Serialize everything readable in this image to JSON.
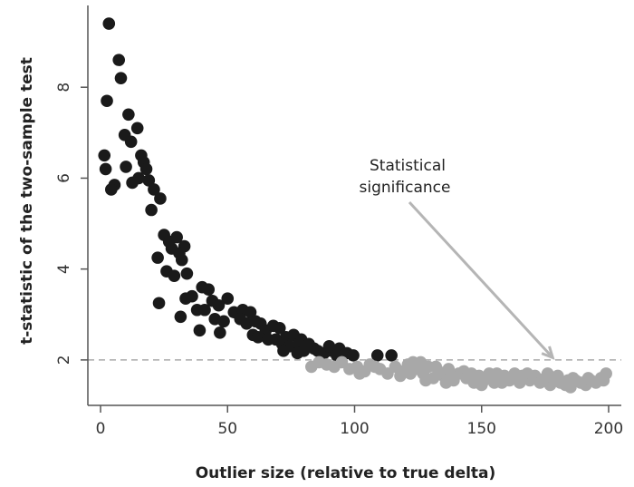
{
  "chart_data": {
    "type": "scatter",
    "title": "",
    "xlabel": "Outlier size (relative to true delta)",
    "ylabel": "t-statistic of the two-sample test",
    "xlim": [
      -5,
      205
    ],
    "ylim": [
      1.0,
      9.8
    ],
    "x_ticks": [
      0,
      50,
      100,
      150,
      200
    ],
    "y_ticks": [
      2,
      4,
      6,
      8
    ],
    "grid": false,
    "reference_line": {
      "y": 2,
      "style": "dashed",
      "color": "#aaaaaa"
    },
    "annotation": {
      "lines": [
        "Statistical",
        "significance"
      ],
      "arrow_to": {
        "x": 178,
        "y": 2.05
      }
    },
    "colors": {
      "significant": "#1a1a1a",
      "not_significant": "#a8a8a8",
      "axis": "#555555"
    },
    "series": [
      {
        "key": "significant",
        "points": [
          [
            3.3,
            9.4
          ],
          [
            2.5,
            7.7
          ],
          [
            7.2,
            8.6
          ],
          [
            8,
            8.2
          ],
          [
            11,
            7.4
          ],
          [
            14.5,
            7.1
          ],
          [
            9.5,
            6.95
          ],
          [
            12,
            6.8
          ],
          [
            16,
            6.5
          ],
          [
            17,
            6.35
          ],
          [
            1.5,
            6.5
          ],
          [
            2,
            6.2
          ],
          [
            10,
            6.25
          ],
          [
            18,
            6.2
          ],
          [
            15,
            6.0
          ],
          [
            19,
            5.95
          ],
          [
            12.5,
            5.9
          ],
          [
            5.5,
            5.85
          ],
          [
            4.2,
            5.75
          ],
          [
            21,
            5.75
          ],
          [
            23.5,
            5.55
          ],
          [
            20,
            5.3
          ],
          [
            25,
            4.75
          ],
          [
            27,
            4.6
          ],
          [
            30,
            4.7
          ],
          [
            33,
            4.5
          ],
          [
            28,
            4.45
          ],
          [
            31,
            4.35
          ],
          [
            22.5,
            4.25
          ],
          [
            32,
            4.2
          ],
          [
            26,
            3.95
          ],
          [
            29,
            3.85
          ],
          [
            34,
            3.9
          ],
          [
            40,
            3.6
          ],
          [
            42.5,
            3.55
          ],
          [
            36,
            3.4
          ],
          [
            33.5,
            3.35
          ],
          [
            23,
            3.25
          ],
          [
            44,
            3.3
          ],
          [
            50,
            3.35
          ],
          [
            46.5,
            3.2
          ],
          [
            38,
            3.1
          ],
          [
            41,
            3.1
          ],
          [
            52.5,
            3.05
          ],
          [
            56,
            3.1
          ],
          [
            59,
            3.05
          ],
          [
            55,
            2.9
          ],
          [
            31.5,
            2.95
          ],
          [
            45,
            2.9
          ],
          [
            48.5,
            2.85
          ],
          [
            57.5,
            2.8
          ],
          [
            61,
            2.85
          ],
          [
            63,
            2.8
          ],
          [
            65,
            2.65
          ],
          [
            68,
            2.75
          ],
          [
            70.5,
            2.7
          ],
          [
            39,
            2.65
          ],
          [
            47,
            2.6
          ],
          [
            60,
            2.55
          ],
          [
            62,
            2.5
          ],
          [
            66,
            2.45
          ],
          [
            73,
            2.5
          ],
          [
            76,
            2.55
          ],
          [
            69,
            2.45
          ],
          [
            79,
            2.45
          ],
          [
            71.5,
            2.35
          ],
          [
            74.5,
            2.3
          ],
          [
            78,
            2.35
          ],
          [
            82,
            2.35
          ],
          [
            84,
            2.25
          ],
          [
            85.5,
            2.2
          ],
          [
            88,
            2.15
          ],
          [
            91,
            2.2
          ],
          [
            94,
            2.25
          ],
          [
            90,
            2.3
          ],
          [
            72,
            2.2
          ],
          [
            77.5,
            2.15
          ],
          [
            80,
            2.2
          ],
          [
            93,
            2.1
          ],
          [
            97,
            2.15
          ],
          [
            99.5,
            2.1
          ],
          [
            109,
            2.1
          ],
          [
            114.5,
            2.1
          ]
        ]
      },
      {
        "key": "not_significant",
        "points": [
          [
            83,
            1.85
          ],
          [
            86,
            1.95
          ],
          [
            89,
            1.9
          ],
          [
            92,
            1.85
          ],
          [
            95,
            1.95
          ],
          [
            98,
            1.8
          ],
          [
            101,
            1.85
          ],
          [
            104,
            1.75
          ],
          [
            106,
            1.9
          ],
          [
            110,
            1.8
          ],
          [
            113,
            1.7
          ],
          [
            116,
            1.85
          ],
          [
            119,
            1.75
          ],
          [
            121,
            1.9
          ],
          [
            123,
            1.95
          ],
          [
            125,
            1.8
          ],
          [
            127,
            1.7
          ],
          [
            129,
            1.85
          ],
          [
            131,
            1.6
          ],
          [
            133,
            1.75
          ],
          [
            135,
            1.65
          ],
          [
            137,
            1.8
          ],
          [
            139,
            1.55
          ],
          [
            141,
            1.7
          ],
          [
            143,
            1.75
          ],
          [
            145,
            1.6
          ],
          [
            147,
            1.5
          ],
          [
            149,
            1.65
          ],
          [
            151,
            1.55
          ],
          [
            153,
            1.7
          ],
          [
            155,
            1.5
          ],
          [
            157,
            1.6
          ],
          [
            159,
            1.65
          ],
          [
            161,
            1.55
          ],
          [
            163,
            1.7
          ],
          [
            165,
            1.5
          ],
          [
            167,
            1.6
          ],
          [
            169,
            1.55
          ],
          [
            171,
            1.65
          ],
          [
            173,
            1.5
          ],
          [
            175,
            1.6
          ],
          [
            177,
            1.45
          ],
          [
            179,
            1.55
          ],
          [
            181,
            1.5
          ],
          [
            183,
            1.45
          ],
          [
            185,
            1.4
          ],
          [
            187,
            1.55
          ],
          [
            189,
            1.5
          ],
          [
            191,
            1.45
          ],
          [
            193,
            1.55
          ],
          [
            195,
            1.5
          ],
          [
            197,
            1.6
          ],
          [
            199,
            1.7
          ],
          [
            122,
            1.7
          ],
          [
            126,
            1.95
          ],
          [
            132,
            1.85
          ],
          [
            138,
            1.65
          ],
          [
            144,
            1.6
          ],
          [
            150,
            1.45
          ],
          [
            156,
            1.7
          ],
          [
            162,
            1.6
          ],
          [
            168,
            1.7
          ],
          [
            174,
            1.55
          ],
          [
            180,
            1.65
          ],
          [
            186,
            1.6
          ],
          [
            192,
            1.6
          ],
          [
            198,
            1.55
          ],
          [
            102,
            1.7
          ],
          [
            108,
            1.85
          ],
          [
            118,
            1.65
          ],
          [
            128,
            1.55
          ],
          [
            136,
            1.5
          ],
          [
            146,
            1.7
          ],
          [
            158,
            1.5
          ],
          [
            166,
            1.65
          ],
          [
            176,
            1.7
          ],
          [
            184,
            1.55
          ]
        ]
      }
    ]
  }
}
